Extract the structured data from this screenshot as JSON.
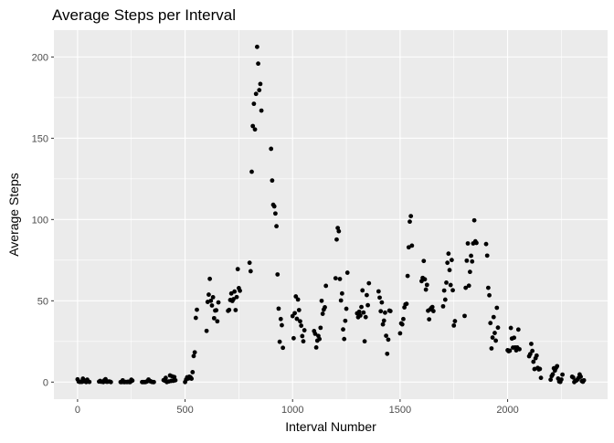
{
  "chart_data": {
    "type": "scatter",
    "title": "Average Steps per Interval",
    "xlabel": "Interval Number",
    "ylabel": "Average Steps",
    "xlim": [
      -110,
      2465
    ],
    "ylim": [
      -10.5,
      216.5
    ],
    "x_ticks": [
      0,
      500,
      1000,
      1500,
      2000
    ],
    "y_ticks": [
      0,
      50,
      100,
      150,
      200
    ],
    "x_minor_ticks": [
      250,
      750,
      1250,
      1750,
      2250
    ],
    "y_minor_ticks": [
      25,
      75,
      125,
      175
    ],
    "grid": true,
    "legend": "none",
    "point_color": "#000000",
    "panel_background": "#ebebeb",
    "grid_color": "#ffffff",
    "points": [
      [
        0,
        1.7
      ],
      [
        5,
        0.3
      ],
      [
        10,
        0.1
      ],
      [
        15,
        0.2
      ],
      [
        20,
        0.1
      ],
      [
        25,
        2.1
      ],
      [
        30,
        0.5
      ],
      [
        35,
        0.9
      ],
      [
        40,
        0.0
      ],
      [
        45,
        1.5
      ],
      [
        50,
        0.3
      ],
      [
        55,
        0.1
      ],
      [
        100,
        0.3
      ],
      [
        105,
        0.7
      ],
      [
        110,
        0.2
      ],
      [
        115,
        0.3
      ],
      [
        120,
        0.0
      ],
      [
        125,
        1.1
      ],
      [
        130,
        1.8
      ],
      [
        135,
        0.2
      ],
      [
        140,
        0.2
      ],
      [
        145,
        0.4
      ],
      [
        150,
        0.3
      ],
      [
        155,
        0.0
      ],
      [
        200,
        0.0
      ],
      [
        205,
        0.0
      ],
      [
        210,
        1.1
      ],
      [
        215,
        0.0
      ],
      [
        220,
        0.0
      ],
      [
        225,
        0.1
      ],
      [
        230,
        0.0
      ],
      [
        235,
        0.2
      ],
      [
        240,
        0.0
      ],
      [
        245,
        0.0
      ],
      [
        250,
        1.5
      ],
      [
        255,
        0.9
      ],
      [
        300,
        0.0
      ],
      [
        305,
        0.0
      ],
      [
        310,
        0.0
      ],
      [
        315,
        0.0
      ],
      [
        320,
        0.2
      ],
      [
        325,
        0.6
      ],
      [
        330,
        1.6
      ],
      [
        335,
        0.6
      ],
      [
        340,
        0.5
      ],
      [
        345,
        0.1
      ],
      [
        350,
        0.0
      ],
      [
        355,
        0.0
      ],
      [
        400,
        1.2
      ],
      [
        405,
        0.9
      ],
      [
        410,
        2.6
      ],
      [
        415,
        0.0
      ],
      [
        420,
        0.3
      ],
      [
        425,
        0.4
      ],
      [
        430,
        4.1
      ],
      [
        435,
        0.7
      ],
      [
        440,
        3.5
      ],
      [
        445,
        0.8
      ],
      [
        450,
        3.1
      ],
      [
        455,
        1.1
      ],
      [
        500,
        0.0
      ],
      [
        505,
        1.6
      ],
      [
        510,
        3.0
      ],
      [
        515,
        2.2
      ],
      [
        520,
        3.3
      ],
      [
        525,
        3.0
      ],
      [
        530,
        2.1
      ],
      [
        535,
        6.1
      ],
      [
        540,
        16.0
      ],
      [
        545,
        18.3
      ],
      [
        550,
        39.5
      ],
      [
        555,
        44.5
      ],
      [
        600,
        31.5
      ],
      [
        605,
        49.3
      ],
      [
        610,
        53.8
      ],
      [
        615,
        63.5
      ],
      [
        620,
        50.0
      ],
      [
        625,
        47.1
      ],
      [
        630,
        52.2
      ],
      [
        635,
        39.3
      ],
      [
        640,
        44.0
      ],
      [
        645,
        44.2
      ],
      [
        650,
        37.4
      ],
      [
        655,
        49.0
      ],
      [
        700,
        43.8
      ],
      [
        705,
        44.4
      ],
      [
        710,
        50.5
      ],
      [
        715,
        54.5
      ],
      [
        720,
        49.9
      ],
      [
        725,
        51.0
      ],
      [
        730,
        55.7
      ],
      [
        735,
        44.3
      ],
      [
        740,
        52.3
      ],
      [
        745,
        69.5
      ],
      [
        750,
        57.8
      ],
      [
        755,
        56.2
      ],
      [
        800,
        73.4
      ],
      [
        805,
        68.2
      ],
      [
        810,
        129.4
      ],
      [
        815,
        157.5
      ],
      [
        820,
        171.2
      ],
      [
        825,
        155.4
      ],
      [
        830,
        177.3
      ],
      [
        835,
        206.2
      ],
      [
        840,
        195.9
      ],
      [
        845,
        179.6
      ],
      [
        850,
        183.4
      ],
      [
        855,
        167.0
      ],
      [
        900,
        143.5
      ],
      [
        905,
        124.0
      ],
      [
        910,
        109.1
      ],
      [
        915,
        108.1
      ],
      [
        920,
        103.7
      ],
      [
        925,
        95.9
      ],
      [
        930,
        66.2
      ],
      [
        935,
        45.2
      ],
      [
        940,
        24.8
      ],
      [
        945,
        38.8
      ],
      [
        950,
        34.98
      ],
      [
        955,
        21.1
      ],
      [
        1000,
        40.6
      ],
      [
        1005,
        26.98
      ],
      [
        1010,
        42.4
      ],
      [
        1015,
        52.7
      ],
      [
        1020,
        38.9
      ],
      [
        1025,
        50.8
      ],
      [
        1030,
        44.3
      ],
      [
        1035,
        37.4
      ],
      [
        1040,
        34.7
      ],
      [
        1045,
        28.3
      ],
      [
        1050,
        25.1
      ],
      [
        1055,
        31.9
      ],
      [
        1100,
        31.4
      ],
      [
        1105,
        29.7
      ],
      [
        1110,
        21.3
      ],
      [
        1115,
        25.5
      ],
      [
        1120,
        28.4
      ],
      [
        1125,
        26.5
      ],
      [
        1130,
        33.4
      ],
      [
        1135,
        49.98
      ],
      [
        1140,
        42.0
      ],
      [
        1145,
        44.6
      ],
      [
        1150,
        46.0
      ],
      [
        1155,
        59.2
      ],
      [
        1200,
        63.9
      ],
      [
        1205,
        87.7
      ],
      [
        1210,
        94.8
      ],
      [
        1215,
        92.8
      ],
      [
        1220,
        63.4
      ],
      [
        1225,
        50.2
      ],
      [
        1230,
        54.5
      ],
      [
        1235,
        32.4
      ],
      [
        1240,
        26.5
      ],
      [
        1245,
        37.7
      ],
      [
        1250,
        45.1
      ],
      [
        1255,
        67.3
      ],
      [
        1300,
        42.3
      ],
      [
        1305,
        39.9
      ],
      [
        1310,
        43.3
      ],
      [
        1315,
        40.98
      ],
      [
        1320,
        46.2
      ],
      [
        1325,
        56.4
      ],
      [
        1330,
        42.8
      ],
      [
        1335,
        25.1
      ],
      [
        1340,
        39.97
      ],
      [
        1345,
        53.5
      ],
      [
        1350,
        47.3
      ],
      [
        1355,
        60.8
      ],
      [
        1400,
        55.8
      ],
      [
        1405,
        51.96
      ],
      [
        1410,
        43.6
      ],
      [
        1415,
        49.0
      ],
      [
        1420,
        35.5
      ],
      [
        1425,
        37.8
      ],
      [
        1430,
        42.7
      ],
      [
        1435,
        28.5
      ],
      [
        1440,
        17.4
      ],
      [
        1445,
        26.1
      ],
      [
        1450,
        43.97
      ],
      [
        1455,
        43.7
      ],
      [
        1500,
        30.0
      ],
      [
        1505,
        36.1
      ],
      [
        1510,
        35.5
      ],
      [
        1515,
        38.8
      ],
      [
        1520,
        45.96
      ],
      [
        1525,
        47.8
      ],
      [
        1530,
        48.1
      ],
      [
        1535,
        65.3
      ],
      [
        1540,
        82.9
      ],
      [
        1545,
        98.7
      ],
      [
        1550,
        102.1
      ],
      [
        1555,
        83.96
      ],
      [
        1600,
        62.1
      ],
      [
        1605,
        64.1
      ],
      [
        1610,
        74.5
      ],
      [
        1615,
        63.2
      ],
      [
        1620,
        56.9
      ],
      [
        1625,
        59.8
      ],
      [
        1630,
        43.9
      ],
      [
        1635,
        38.6
      ],
      [
        1640,
        44.7
      ],
      [
        1645,
        45.5
      ],
      [
        1650,
        46.2
      ],
      [
        1655,
        43.7
      ],
      [
        1700,
        46.6
      ],
      [
        1705,
        56.3
      ],
      [
        1710,
        50.7
      ],
      [
        1715,
        61.2
      ],
      [
        1720,
        73.4
      ],
      [
        1725,
        79.0
      ],
      [
        1730,
        68.9
      ],
      [
        1735,
        59.7
      ],
      [
        1740,
        75.1
      ],
      [
        1745,
        56.5
      ],
      [
        1750,
        34.8
      ],
      [
        1755,
        37.5
      ],
      [
        1800,
        40.7
      ],
      [
        1805,
        58.0
      ],
      [
        1810,
        74.7
      ],
      [
        1815,
        85.3
      ],
      [
        1820,
        59.3
      ],
      [
        1825,
        67.8
      ],
      [
        1830,
        77.7
      ],
      [
        1835,
        74.2
      ],
      [
        1840,
        85.3
      ],
      [
        1845,
        99.5
      ],
      [
        1850,
        86.6
      ],
      [
        1855,
        85.6
      ],
      [
        1900,
        84.9
      ],
      [
        1905,
        77.8
      ],
      [
        1910,
        58.0
      ],
      [
        1915,
        53.4
      ],
      [
        1920,
        36.3
      ],
      [
        1925,
        20.7
      ],
      [
        1930,
        27.4
      ],
      [
        1935,
        40.0
      ],
      [
        1940,
        30.2
      ],
      [
        1945,
        25.5
      ],
      [
        1950,
        45.7
      ],
      [
        1955,
        33.5
      ],
      [
        2000,
        19.6
      ],
      [
        2005,
        19.0
      ],
      [
        2010,
        19.3
      ],
      [
        2015,
        33.3
      ],
      [
        2020,
        26.8
      ],
      [
        2025,
        21.2
      ],
      [
        2030,
        27.3
      ],
      [
        2035,
        21.3
      ],
      [
        2040,
        19.5
      ],
      [
        2045,
        21.3
      ],
      [
        2050,
        32.3
      ],
      [
        2055,
        20.2
      ],
      [
        2100,
        15.9
      ],
      [
        2105,
        17.2
      ],
      [
        2110,
        23.5
      ],
      [
        2115,
        19.2
      ],
      [
        2120,
        12.5
      ],
      [
        2125,
        8.0
      ],
      [
        2130,
        14.7
      ],
      [
        2135,
        16.3
      ],
      [
        2140,
        8.7
      ],
      [
        2145,
        7.8
      ],
      [
        2150,
        8.1
      ],
      [
        2155,
        2.6
      ],
      [
        2200,
        1.5
      ],
      [
        2205,
        3.7
      ],
      [
        2210,
        4.8
      ],
      [
        2215,
        8.5
      ],
      [
        2220,
        7.1
      ],
      [
        2225,
        8.7
      ],
      [
        2230,
        9.8
      ],
      [
        2235,
        2.2
      ],
      [
        2240,
        0.3
      ],
      [
        2245,
        0.1
      ],
      [
        2250,
        1.6
      ],
      [
        2255,
        4.6
      ],
      [
        2300,
        3.3
      ],
      [
        2305,
        2.8
      ],
      [
        2310,
        0.0
      ],
      [
        2315,
        0.8
      ],
      [
        2320,
        0.96
      ],
      [
        2325,
        1.6
      ],
      [
        2330,
        2.6
      ],
      [
        2335,
        4.7
      ],
      [
        2340,
        3.3
      ],
      [
        2345,
        0.6
      ],
      [
        2350,
        0.2
      ],
      [
        2355,
        1.1
      ]
    ]
  }
}
